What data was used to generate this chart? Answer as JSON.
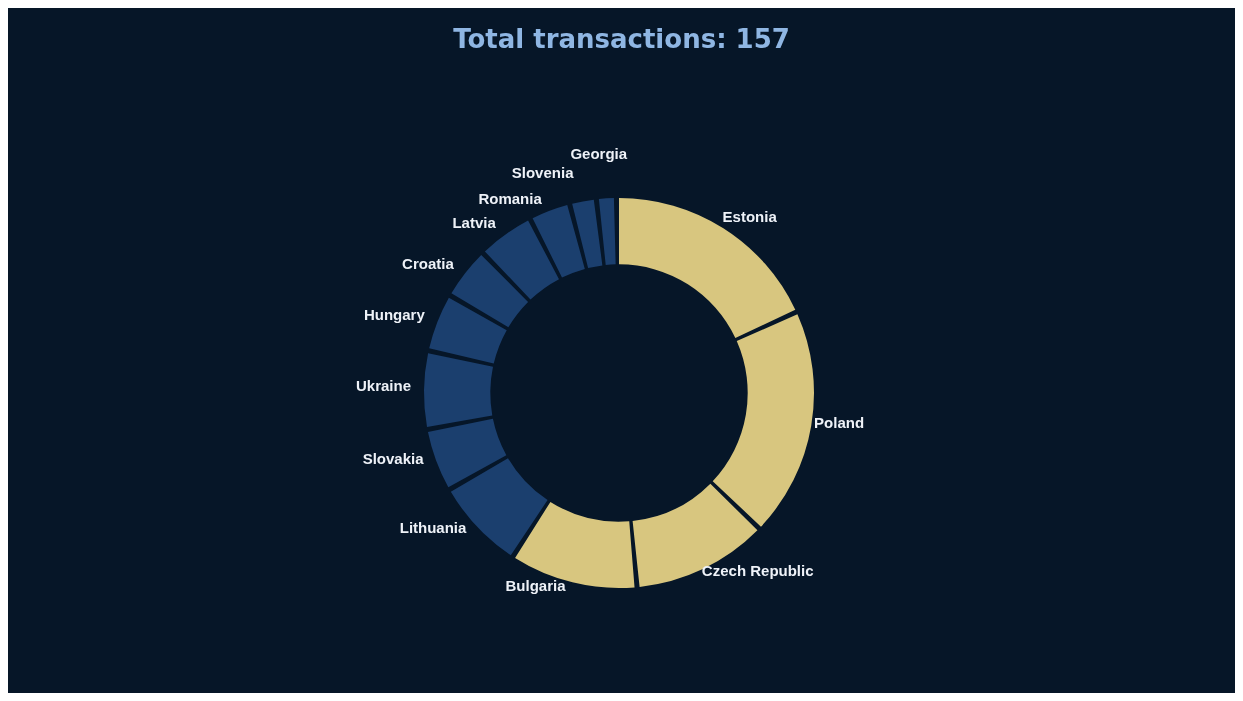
{
  "chart_data": {
    "type": "donut",
    "title": "Total transactions: 157",
    "categories": [
      "Estonia",
      "Poland",
      "Czech Republic",
      "Bulgaria",
      "Lithuania",
      "Slovakia",
      "Ukraine",
      "Hungary",
      "Croatia",
      "Latvia",
      "Romania",
      "Slovenia",
      "Georgia"
    ],
    "values": [
      19.0,
      19.7,
      11.5,
      10.8,
      7.6,
      5.1,
      6.4,
      4.7,
      4.2,
      4.6,
      3.2,
      1.9,
      1.3
    ],
    "colors": [
      "#d8c67f",
      "#d8c67f",
      "#d8c67f",
      "#d8c67f",
      "#1b3f6e",
      "#1b3f6e",
      "#1b3f6e",
      "#1b3f6e",
      "#1b3f6e",
      "#1b3f6e",
      "#1b3f6e",
      "#1b3f6e",
      "#1b3f6e"
    ]
  }
}
